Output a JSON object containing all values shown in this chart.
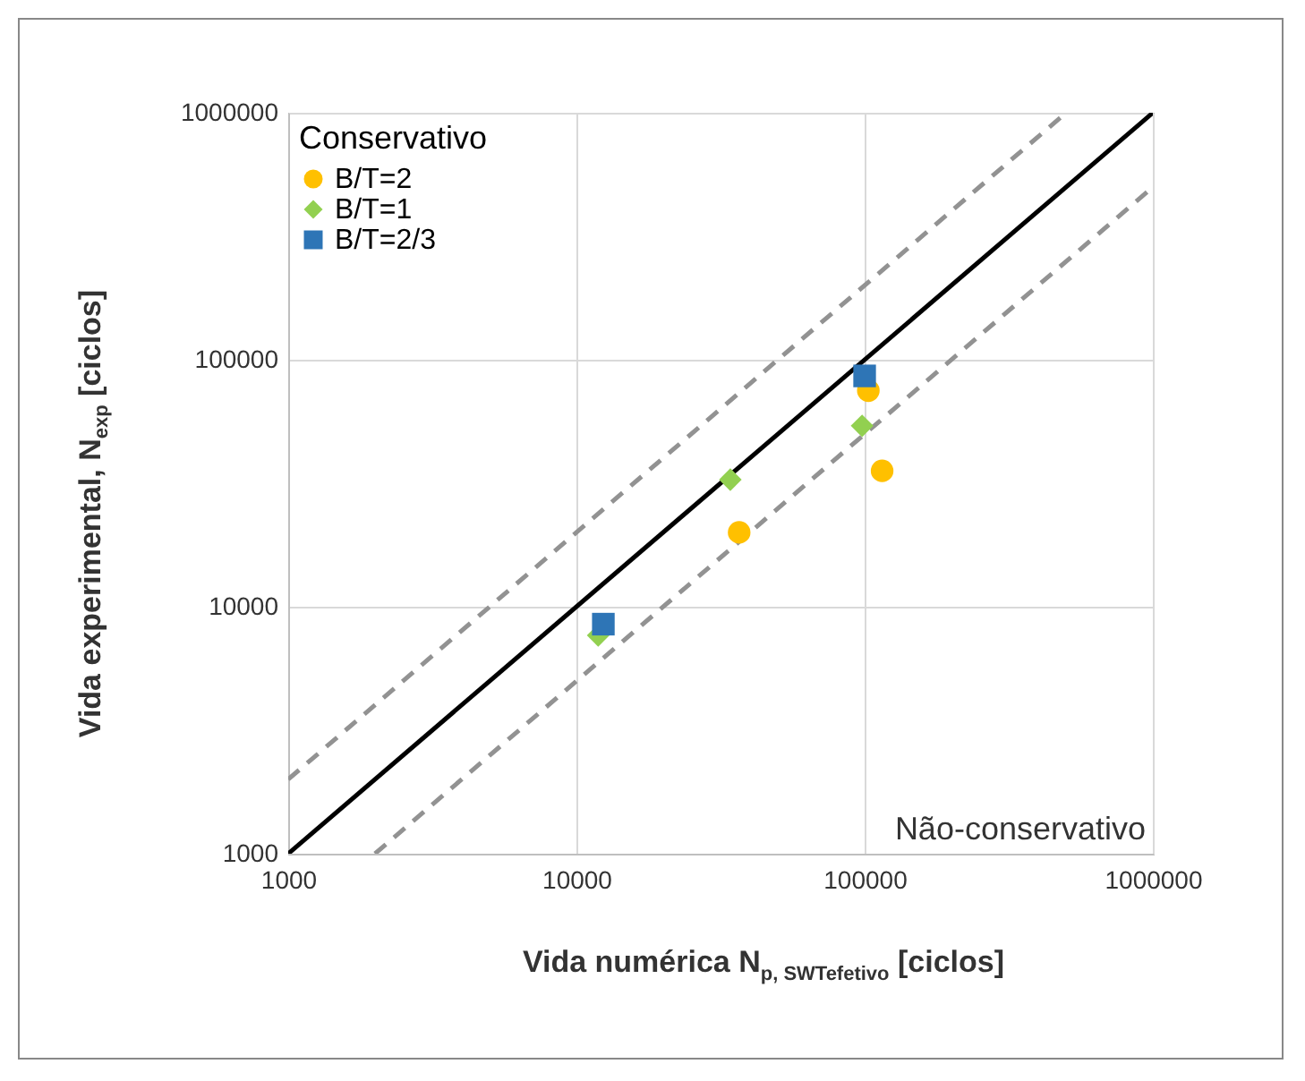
{
  "chart_data": {
    "type": "scatter",
    "xlabel": "Vida numérica N$_{p, SWTefetivo}$ [ciclos]",
    "ylabel": "Vida experimental, N$_{exp}$ [ciclos]",
    "legend_title": "Conservativo",
    "legend": "top left",
    "log": "xy",
    "grid": true,
    "xlim": [
      1000,
      1000000
    ],
    "ylim": [
      1000,
      1000000
    ],
    "xticks": [
      1000,
      10000,
      100000,
      1000000
    ],
    "yticks": [
      1000,
      10000,
      100000,
      1000000
    ],
    "annotations": [
      "Não-conservativo"
    ],
    "series": [
      {
        "type": "line",
        "color": "#000000",
        "line_style": "solid",
        "x": [
          1000,
          1000000
        ],
        "values": [
          1000,
          1000000
        ]
      },
      {
        "type": "line",
        "color": "#929292",
        "line_style": "dashed",
        "x": [
          1000,
          500000
        ],
        "values": [
          2000,
          1000000
        ]
      },
      {
        "type": "line",
        "color": "#929292",
        "line_style": "dashed",
        "x": [
          2000,
          1000000
        ],
        "values": [
          1000,
          500000
        ]
      },
      {
        "name": "B/T=2",
        "color": "#ffc000",
        "marker": "circle",
        "x": [
          103000,
          115000,
          36700
        ],
        "values": [
          75000,
          35500,
          20000
        ]
      },
      {
        "name": "B/T=1",
        "color": "#92d050",
        "marker": "diamond",
        "x": [
          34200,
          98000,
          11900
        ],
        "values": [
          32700,
          54000,
          7650
        ]
      },
      {
        "name": "B/T=2/3",
        "color": "#2e75b6",
        "marker": "square",
        "x": [
          12400,
          100000
        ],
        "values": [
          8500,
          86000
        ]
      }
    ]
  }
}
